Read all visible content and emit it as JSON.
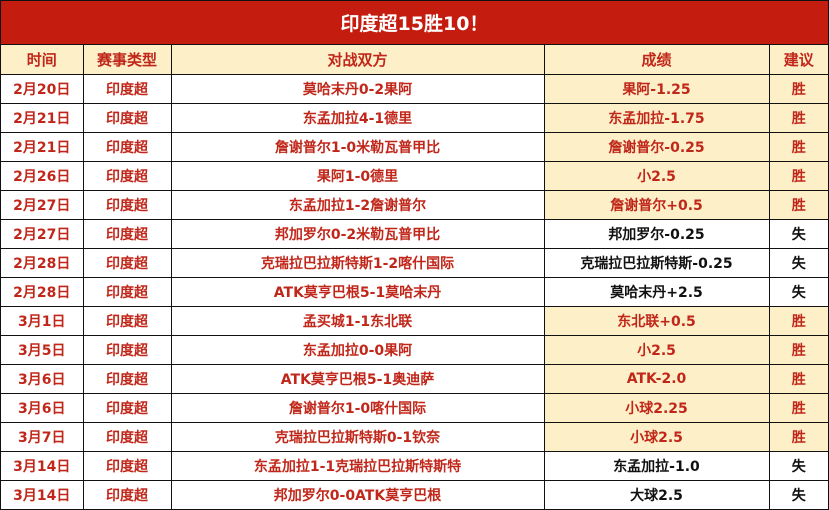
{
  "title": "印度超15胜10！",
  "colors": {
    "title_bg": "#c41d10",
    "header_bg": "#fdf0c8",
    "accent_text": "#c0271a",
    "win_cell_bg": "#fdf0c8",
    "loss_text": "#111111"
  },
  "headers": [
    "时间",
    "赛事类型",
    "对战双方",
    "成绩",
    "建议"
  ],
  "rows": [
    {
      "date": "2月20日",
      "league": "印度超",
      "match": "莫哈末丹0-2果阿",
      "result": "果阿-1.25",
      "advice": "胜",
      "win": true
    },
    {
      "date": "2月21日",
      "league": "印度超",
      "match": "东孟加拉4-1德里",
      "result": "东孟加拉-1.75",
      "advice": "胜",
      "win": true
    },
    {
      "date": "2月21日",
      "league": "印度超",
      "match": "詹谢普尔1-0米勒瓦普甲比",
      "result": "詹谢普尔-0.25",
      "advice": "胜",
      "win": true
    },
    {
      "date": "2月26日",
      "league": "印度超",
      "match": "果阿1-0德里",
      "result": "小2.5",
      "advice": "胜",
      "win": true
    },
    {
      "date": "2月27日",
      "league": "印度超",
      "match": "东孟加拉1-2詹谢普尔",
      "result": "詹谢普尔+0.5",
      "advice": "胜",
      "win": true
    },
    {
      "date": "2月27日",
      "league": "印度超",
      "match": "邦加罗尔0-2米勒瓦普甲比",
      "result": "邦加罗尔-0.25",
      "advice": "失",
      "win": false
    },
    {
      "date": "2月28日",
      "league": "印度超",
      "match": "克瑞拉巴拉斯特斯1-2喀什国际",
      "result": "克瑞拉巴拉斯特斯-0.25",
      "advice": "失",
      "win": false
    },
    {
      "date": "2月28日",
      "league": "印度超",
      "match": "ATK莫亨巴根5-1莫哈末丹",
      "result": "莫哈末丹+2.5",
      "advice": "失",
      "win": false
    },
    {
      "date": "3月1日",
      "league": "印度超",
      "match": "孟买城1-1东北联",
      "result": "东北联+0.5",
      "advice": "胜",
      "win": true
    },
    {
      "date": "3月5日",
      "league": "印度超",
      "match": "东孟加拉0-0果阿",
      "result": "小2.5",
      "advice": "胜",
      "win": true
    },
    {
      "date": "3月6日",
      "league": "印度超",
      "match": "ATK莫亨巴根5-1奥迪萨",
      "result": "ATK-2.0",
      "advice": "胜",
      "win": true
    },
    {
      "date": "3月6日",
      "league": "印度超",
      "match": "詹谢普尔1-0喀什国际",
      "result": "小球2.25",
      "advice": "胜",
      "win": true
    },
    {
      "date": "3月7日",
      "league": "印度超",
      "match": "克瑞拉巴拉斯特斯0-1钦奈",
      "result": "小球2.5",
      "advice": "胜",
      "win": true
    },
    {
      "date": "3月14日",
      "league": "印度超",
      "match": "东孟加拉1-1克瑞拉巴拉斯特斯特",
      "result": "东孟加拉-1.0",
      "advice": "失",
      "win": false
    },
    {
      "date": "3月14日",
      "league": "印度超",
      "match": "邦加罗尔0-0ATK莫亨巴根",
      "result": "大球2.5",
      "advice": "失",
      "win": false
    }
  ]
}
